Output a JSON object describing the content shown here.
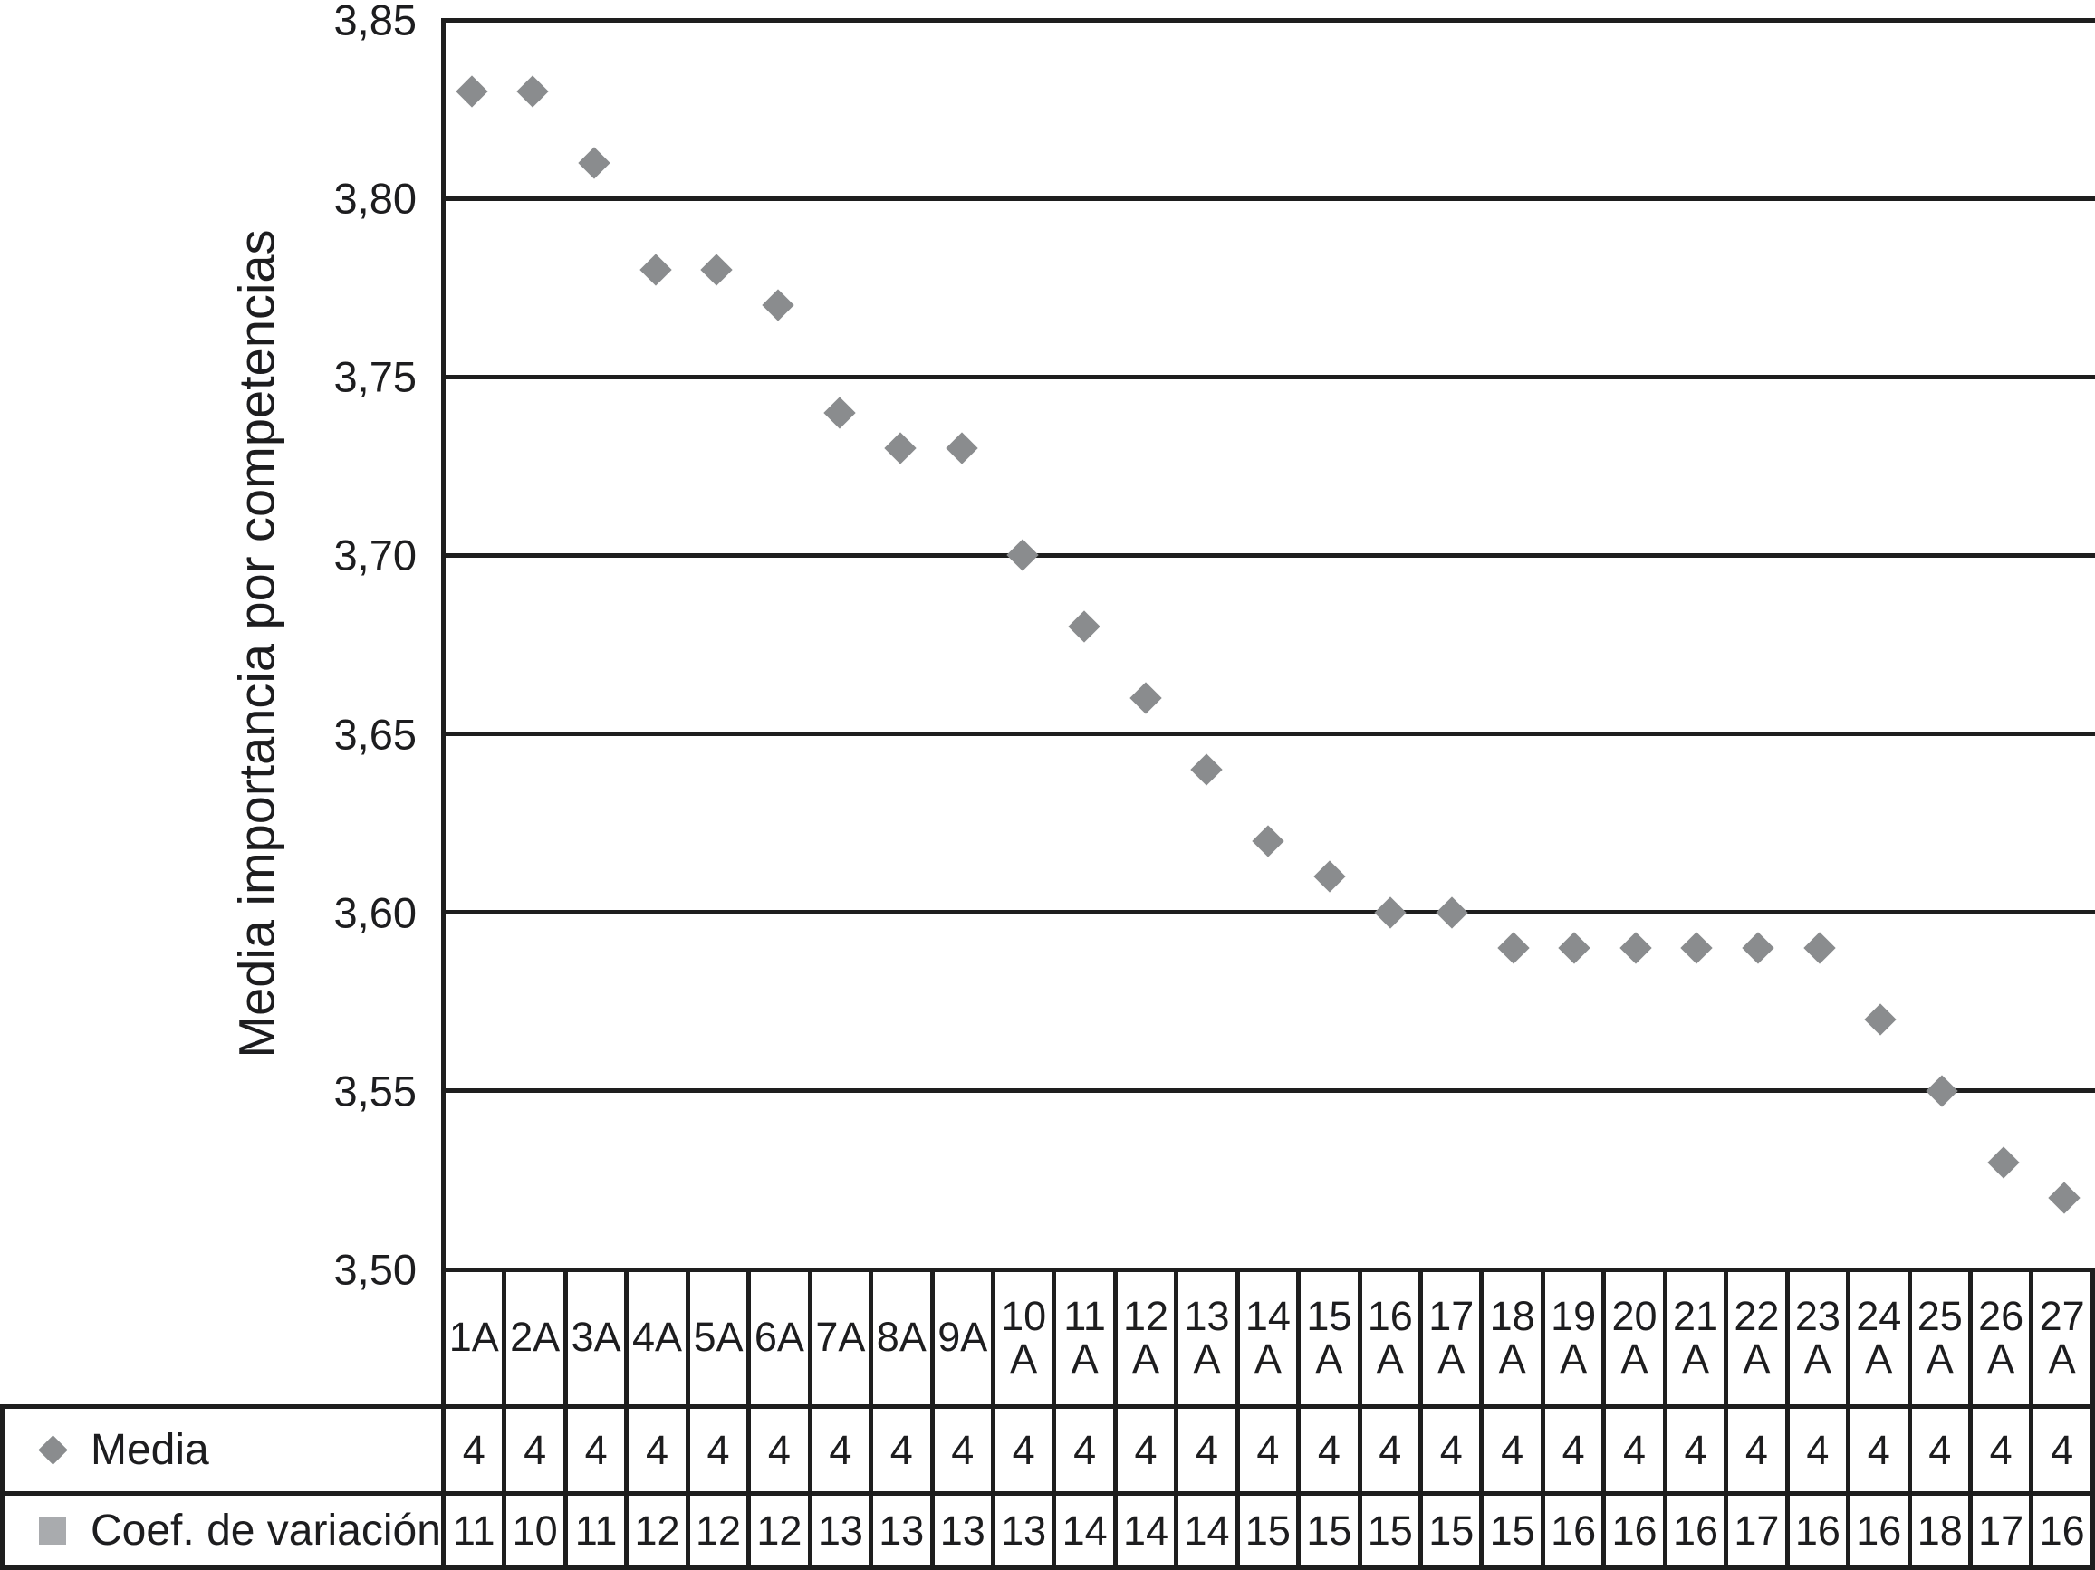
{
  "chart_data": {
    "type": "scatter",
    "title": "",
    "y_axis_title": "Media importancia por competencias",
    "ylim": [
      3.5,
      3.85
    ],
    "ytick_step": 0.05,
    "y_tick_labels": [
      "3,85",
      "3,80",
      "3,75",
      "3,70",
      "3,65",
      "3,60",
      "3,55",
      "3,50"
    ],
    "grid": "horizontal-gridlines",
    "legend_position": "table-left",
    "categories": [
      "1A",
      "2A",
      "3A",
      "4A",
      "5A",
      "6A",
      "7A",
      "8A",
      "9A",
      "10A",
      "11A",
      "12A",
      "13A",
      "14A",
      "15A",
      "16A",
      "17A",
      "18A",
      "19A",
      "20A",
      "21A",
      "22A",
      "23A",
      "24A",
      "25A",
      "26A",
      "27A"
    ],
    "series": [
      {
        "name": "Media",
        "marker": "diamond",
        "color": "#8a8c8e",
        "values": [
          3.83,
          3.83,
          3.81,
          3.78,
          3.78,
          3.77,
          3.74,
          3.73,
          3.73,
          3.7,
          3.68,
          3.66,
          3.64,
          3.62,
          3.61,
          3.6,
          3.6,
          3.59,
          3.59,
          3.59,
          3.59,
          3.59,
          3.59,
          3.57,
          3.55,
          3.53,
          3.52
        ],
        "table_values": [
          "4",
          "4",
          "4",
          "4",
          "4",
          "4",
          "4",
          "4",
          "4",
          "4",
          "4",
          "4",
          "4",
          "4",
          "4",
          "4",
          "4",
          "4",
          "4",
          "4",
          "4",
          "4",
          "4",
          "4",
          "4",
          "4",
          "4"
        ]
      },
      {
        "name": "Coef. de variación",
        "marker": "square",
        "color": "#a9abae",
        "table_values": [
          "11",
          "10",
          "11",
          "12",
          "12",
          "12",
          "13",
          "13",
          "13",
          "13",
          "14",
          "14",
          "14",
          "15",
          "15",
          "15",
          "15",
          "15",
          "16",
          "16",
          "16",
          "17",
          "16",
          "16",
          "18",
          "17",
          "16"
        ]
      }
    ]
  },
  "colors": {
    "line": "#1e1e1e",
    "text": "#1d1d1f",
    "background": "#ffffff"
  }
}
